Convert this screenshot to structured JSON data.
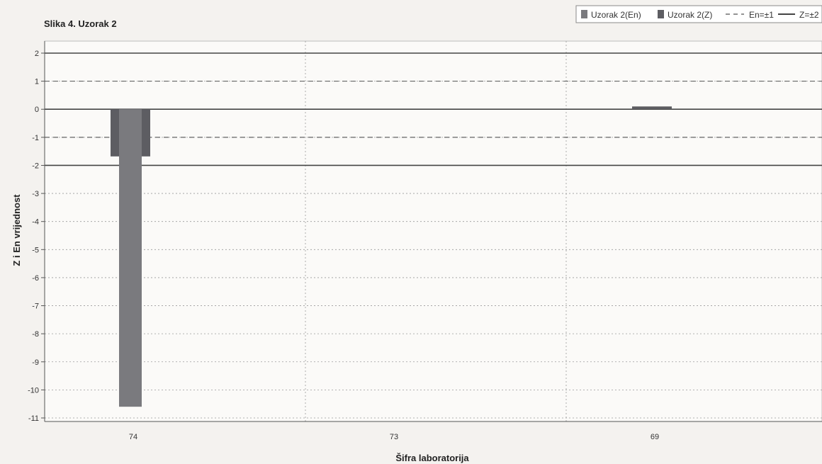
{
  "chart_data": {
    "type": "bar",
    "title": "Slika 4. Uzorak 2",
    "xlabel": "Šifra laboratorija",
    "ylabel": "Z i En vrijednost",
    "categories": [
      "74",
      "73",
      "69"
    ],
    "series": [
      {
        "name": "Uzorak 2(En)",
        "values": [
          -10.6,
          null,
          0.0
        ],
        "color": "#7a7a7e"
      },
      {
        "name": "Uzorak 2(Z)",
        "values": [
          -1.68,
          null,
          0.1
        ],
        "color": "#5d5d62"
      }
    ],
    "reference_lines": [
      {
        "name": "En=±1",
        "values": [
          1,
          -1
        ],
        "style": "dashed",
        "color": "#555555"
      },
      {
        "name": "Z=±2",
        "values": [
          2,
          -2
        ],
        "style": "solid",
        "color": "#444444"
      }
    ],
    "ylim": [
      -11,
      2
    ],
    "yticks": [
      2,
      1,
      0,
      -1,
      -2,
      -3,
      -4,
      -5,
      -6,
      -7,
      -8,
      -9,
      -10,
      -11
    ],
    "grid": true,
    "legend_position": "top-right"
  }
}
